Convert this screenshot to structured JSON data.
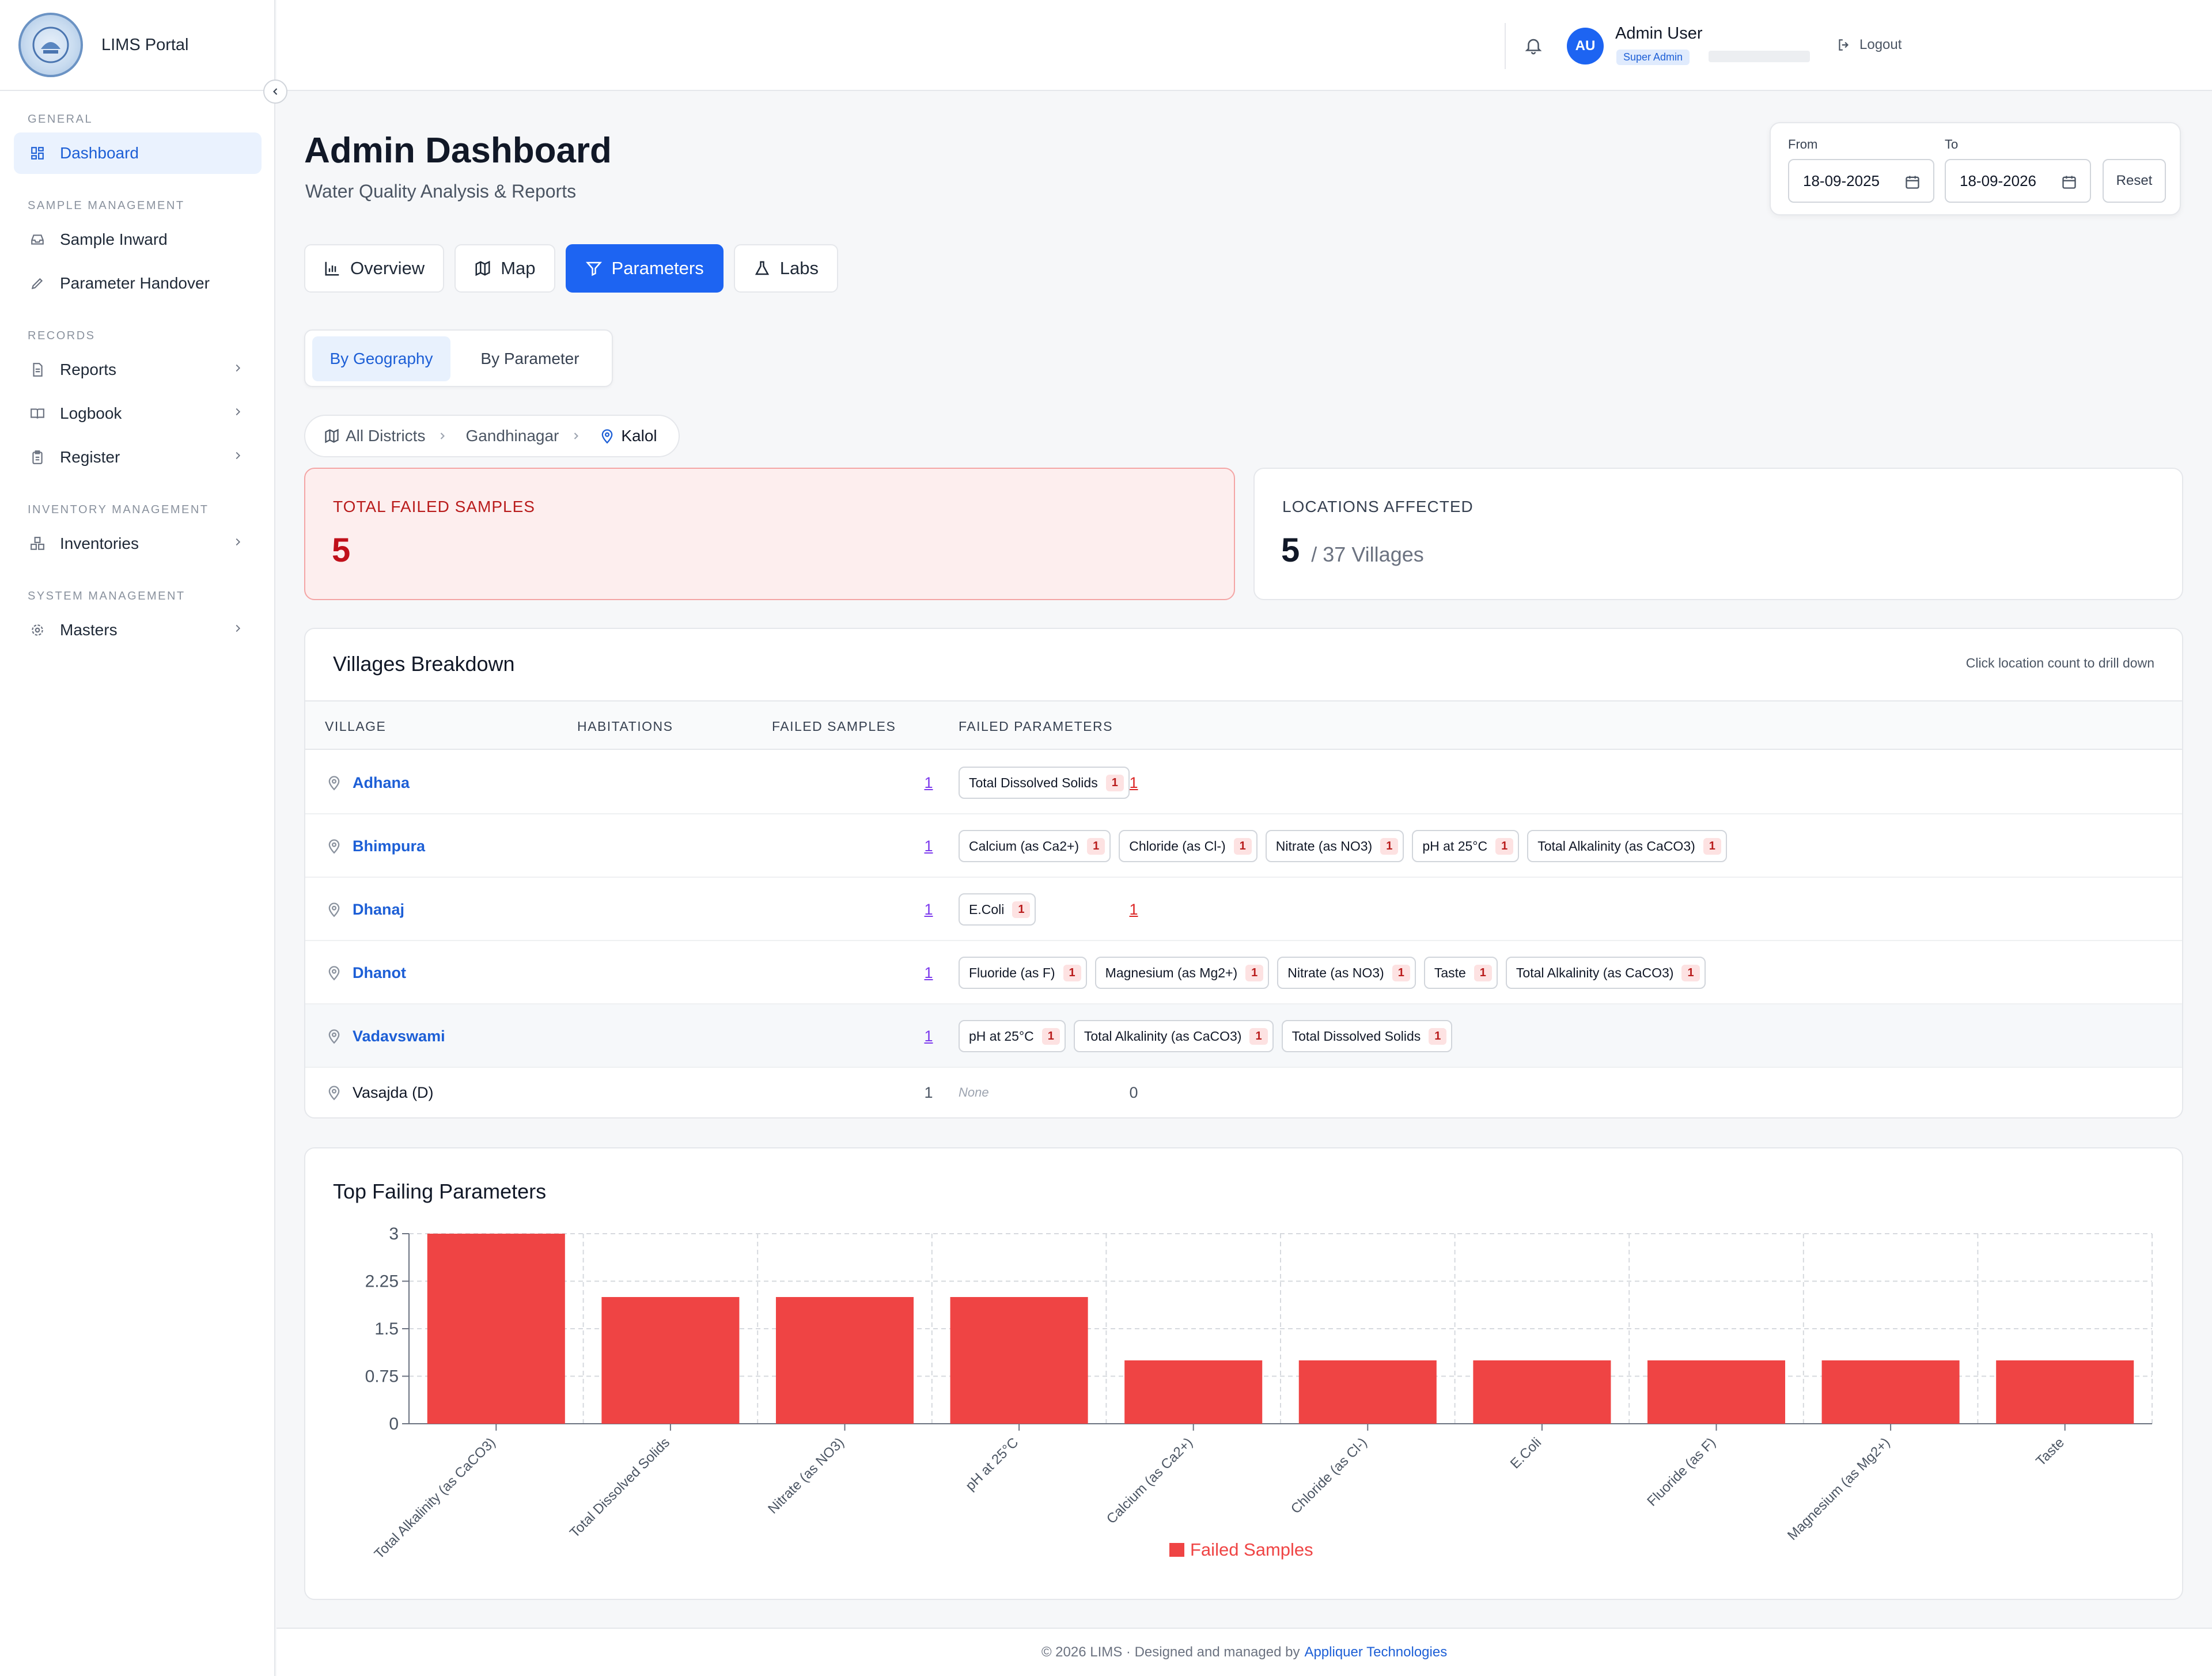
{
  "app": {
    "brand": "LIMS Portal"
  },
  "sidebar": {
    "sections": [
      {
        "label": "GENERAL"
      },
      {
        "label": "SAMPLE MANAGEMENT"
      },
      {
        "label": "RECORDS"
      },
      {
        "label": "INVENTORY MANAGEMENT"
      },
      {
        "label": "SYSTEM MANAGEMENT"
      }
    ],
    "items": [
      {
        "label": "Dashboard",
        "icon": "grid-icon",
        "active": true
      },
      {
        "label": "Sample Inward",
        "icon": "inbox-icon"
      },
      {
        "label": "Parameter Handover",
        "icon": "pencil-icon"
      },
      {
        "label": "Reports",
        "icon": "file-icon"
      },
      {
        "label": "Logbook",
        "icon": "book-icon"
      },
      {
        "label": "Register",
        "icon": "clipboard-icon"
      },
      {
        "label": "Inventories",
        "icon": "boxes-icon"
      },
      {
        "label": "Masters",
        "icon": "gear-icon"
      }
    ]
  },
  "topbar": {
    "user_initials": "AU",
    "user_name": "Admin User",
    "user_role": "Super Admin",
    "logout": "Logout"
  },
  "page": {
    "title": "Admin Dashboard",
    "subtitle": "Water Quality Analysis & Reports"
  },
  "dates": {
    "from_label": "From",
    "from_value": "18-09-2025",
    "to_label": "To",
    "to_value": "18-09-2026",
    "reset": "Reset"
  },
  "tabs": [
    {
      "label": "Overview"
    },
    {
      "label": "Map"
    },
    {
      "label": "Parameters",
      "active": true
    },
    {
      "label": "Labs"
    }
  ],
  "segment": {
    "geo": "By Geography",
    "param": "By Parameter"
  },
  "breadcrumb": {
    "root": "All Districts",
    "district": "Gandhinagar",
    "current": "Kalol"
  },
  "kpis": {
    "failed_label": "TOTAL FAILED SAMPLES",
    "failed_value": "5",
    "locations_label": "LOCATIONS AFFECTED",
    "locations_value": "5",
    "locations_total": "/ 37 Villages"
  },
  "villages": {
    "title": "Villages Breakdown",
    "hint": "Click location count to drill down",
    "headers": {
      "village": "VILLAGE",
      "habitations": "HABITATIONS",
      "failed": "FAILED SAMPLES",
      "params": "FAILED PARAMETERS"
    },
    "rows": [
      {
        "name": "Adhana",
        "hab": "1",
        "failed": "1",
        "params": [
          {
            "n": "Total Dissolved Solids",
            "c": "1"
          }
        ]
      },
      {
        "name": "Bhimpura",
        "hab": "1",
        "failed": "1",
        "params": [
          {
            "n": "Calcium (as Ca2+)",
            "c": "1"
          },
          {
            "n": "Chloride (as Cl-)",
            "c": "1"
          },
          {
            "n": "Nitrate (as NO3)",
            "c": "1"
          },
          {
            "n": "pH at 25°C",
            "c": "1"
          },
          {
            "n": "Total Alkalinity (as CaCO3)",
            "c": "1"
          }
        ]
      },
      {
        "name": "Dhanaj",
        "hab": "1",
        "failed": "1",
        "params": [
          {
            "n": "E.Coli",
            "c": "1"
          }
        ]
      },
      {
        "name": "Dhanot",
        "hab": "1",
        "failed": "1",
        "params": [
          {
            "n": "Fluoride (as F)",
            "c": "1"
          },
          {
            "n": "Magnesium (as Mg2+)",
            "c": "1"
          },
          {
            "n": "Nitrate (as NO3)",
            "c": "1"
          },
          {
            "n": "Taste",
            "c": "1"
          },
          {
            "n": "Total Alkalinity (as CaCO3)",
            "c": "1"
          }
        ]
      },
      {
        "name": "Vadavswami",
        "hab": "1",
        "failed": "1",
        "params": [
          {
            "n": "pH at 25°C",
            "c": "1"
          },
          {
            "n": "Total Alkalinity (as CaCO3)",
            "c": "1"
          },
          {
            "n": "Total Dissolved Solids",
            "c": "1"
          }
        ]
      },
      {
        "name": "Vasajda (D)",
        "hab": "1",
        "failed": "0",
        "params": [],
        "none": "None"
      }
    ]
  },
  "chart_title": "Top Failing Parameters",
  "chart_data": {
    "type": "bar",
    "categories": [
      "Total Alkalinity (as CaCO3)",
      "Total Dissolved Solids",
      "Nitrate (as NO3)",
      "pH at 25°C",
      "Calcium (as Ca2+)",
      "Chloride (as Cl-)",
      "E.Coli",
      "Fluoride (as F)",
      "Magnesium (as Mg2+)",
      "Taste"
    ],
    "series": [
      {
        "name": "Failed Samples",
        "values": [
          3,
          2,
          2,
          2,
          1,
          1,
          1,
          1,
          1,
          1
        ],
        "color": "#ef4444"
      }
    ],
    "yticks": [
      "0",
      "0.75",
      "1.5",
      "2.25",
      "3"
    ],
    "ylim": [
      0,
      3
    ],
    "grid": true,
    "legend": "bottom"
  },
  "footer": {
    "text": "© 2026 LIMS · Designed and managed by",
    "link": "Appliquer Technologies"
  }
}
